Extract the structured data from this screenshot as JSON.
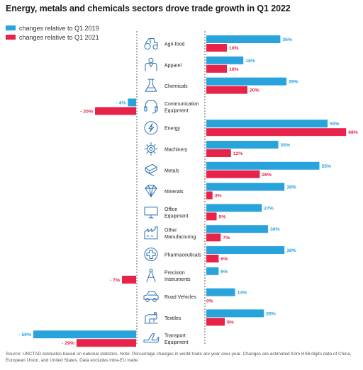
{
  "title": "Energy, metals and chemicals sectors drove trade growth in Q1 2022",
  "colors": {
    "series_2019": "#29a3dc",
    "series_2021": "#e8234a",
    "axis": "#333333",
    "icon": "#2a6fb0"
  },
  "source": {
    "label": "Source:",
    "text": " UNCTAD estimates based on national statistics. Note: Percentage changes in world trade are year-over-year. Changes are estimated from HS6 digits data of China, European Union, and United States. Data excludes intra-EU trade."
  },
  "chart_data": {
    "type": "bar",
    "orientation": "horizontal",
    "title": "Energy, metals and chemicals sectors drove trade growth in Q1 2022",
    "categories": [
      "Agri-food",
      "Apparel",
      "Chemicals",
      "Communication Equipment",
      "Energy",
      "Machinery",
      "Metals",
      "Minerals",
      "Office Equipment",
      "Other Manufacturing",
      "Pharmaceuticals",
      "Precision Instruments",
      "Road Vehicles",
      "Textiles",
      "Transport Equipment"
    ],
    "category_label_lines": [
      [
        "Agri-food"
      ],
      [
        "Apparel"
      ],
      [
        "Chemicals"
      ],
      [
        "Communication",
        "Equipment"
      ],
      [
        "Energy"
      ],
      [
        "Machinery"
      ],
      [
        "Metals"
      ],
      [
        "Minerals"
      ],
      [
        "Office",
        "Equipment"
      ],
      [
        "Other",
        "Manufacturing"
      ],
      [
        "Pharmaceuticals"
      ],
      [
        "Precision",
        "Instruments"
      ],
      [
        "Road Vehicles"
      ],
      [
        "Textiles"
      ],
      [
        "Transport",
        "Equipment"
      ]
    ],
    "category_icons": [
      "tractor-icon",
      "person-icon",
      "flask-icon",
      "headset-icon",
      "lightning-icon",
      "gear-icon",
      "metal-bars-icon",
      "gem-icon",
      "computer-icon",
      "factory-icon",
      "medical-cross-icon",
      "compass-icon",
      "car-icon",
      "sewing-machine-icon",
      "airplane-icon"
    ],
    "series": [
      {
        "name": "changes relative to Q1 2019",
        "values": [
          36,
          18,
          39,
          -4,
          59,
          35,
          55,
          38,
          27,
          30,
          38,
          6,
          14,
          28,
          -50
        ],
        "labels": [
          "36%",
          "18%",
          "39%",
          "- 4%",
          "59%",
          "35%",
          "55%",
          "38%",
          "27%",
          "30%",
          "38%",
          "6%",
          "14%",
          "28%",
          "- 50%"
        ]
      },
      {
        "name": "changes relative to Q1 2021",
        "values": [
          10,
          10,
          20,
          -20,
          68,
          12,
          26,
          3,
          5,
          7,
          6,
          null,
          0,
          9,
          -29
        ],
        "labels": [
          "10%",
          "10%",
          "20%",
          "- 20%",
          "68%",
          "12%",
          "26%",
          "3%",
          "5%",
          "7%",
          "6%",
          "",
          "0%",
          "9%",
          "- 29%"
        ]
      }
    ],
    "annotations": [
      {
        "category": "Precision Instruments",
        "text": "- 7%",
        "note": "Q1 2021 value shown as label only"
      }
    ],
    "xlabel": "",
    "ylabel": "",
    "legend": "top-left",
    "grid": false
  }
}
